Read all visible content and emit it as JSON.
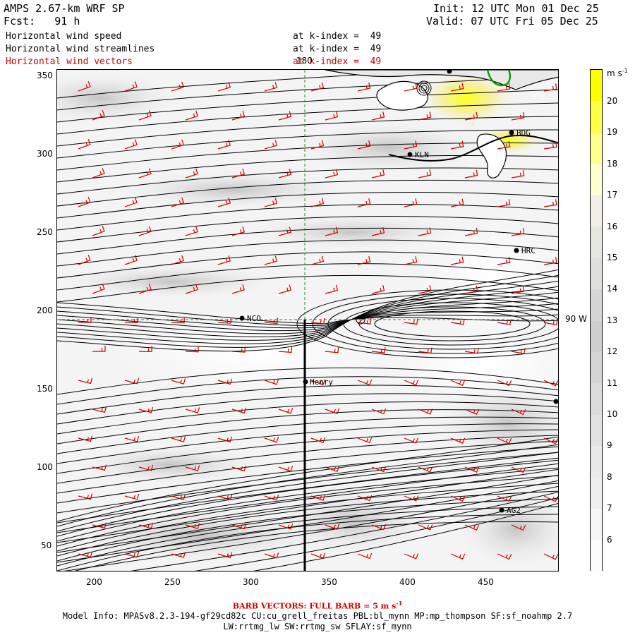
{
  "header": {
    "model": "AMPS 2.67-km WRF SP",
    "forecast": "Fcst:   91 h",
    "init": "Init: 12 UTC Mon 01 Dec 25",
    "valid": "Valid: 07 UTC Fri 05 Dec 25",
    "fields": [
      {
        "name": "Horizontal wind speed",
        "level": "at k-index =  49"
      },
      {
        "name": "Horizontal wind streamlines",
        "level": "at k-index =  49"
      },
      {
        "name": "Horizontal wind vectors",
        "level": "at k-index =  49",
        "color": "#d00000"
      }
    ]
  },
  "axes": {
    "x_ticks": [
      "200",
      "250",
      "300",
      "350",
      "400",
      "450"
    ],
    "y_ticks": [
      "350",
      "300",
      "250",
      "200",
      "150",
      "100",
      "50"
    ]
  },
  "grid_labels": {
    "meridian_top": "180",
    "meridian_right": "90 W"
  },
  "stations": [
    {
      "name": "BDG"
    },
    {
      "name": "KLN"
    },
    {
      "name": "HRC"
    },
    {
      "name": "NCO"
    },
    {
      "name": "Henry"
    },
    {
      "name": "AG2"
    }
  ],
  "colorbar": {
    "unit": "m s",
    "unit_exp": "-1",
    "labels": [
      "20",
      "19",
      "18",
      "17",
      "16",
      "15",
      "14",
      "13",
      "12",
      "11",
      "10",
      "9",
      "8",
      "7",
      "6"
    ],
    "colors": {
      "low": "#ffffff",
      "mid": "#b8b8b8",
      "high": "#ffff00"
    }
  },
  "footer": {
    "barb_note": "BARB VECTORS:  FULL BARB = 5 m s",
    "barb_exp": "-1",
    "model_info": "Model Info: MPASv8.2.3-194-gf29cd82c CU:cu_grell_freitas PBL:bl_mynn MP:mp_thompson SF:sf_noahmp 2.7",
    "model_info2": "LW:rrtmg_lw SW:rrtmg_sw SFLAY:sf_mynn"
  },
  "colors": {
    "barb": "#d00000",
    "streamline": "#000000",
    "coast": "#000000",
    "green_contour": "#00a000"
  }
}
